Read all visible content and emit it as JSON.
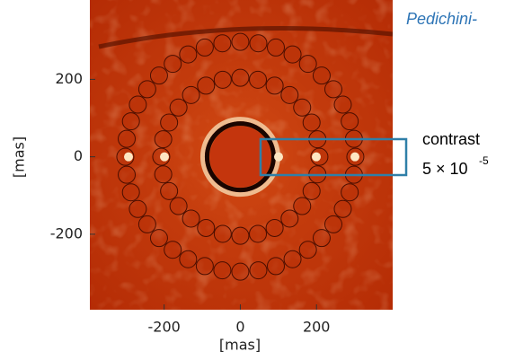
{
  "chart_data": {
    "type": "image",
    "title": "Pedichini-",
    "x_label": "[mas]",
    "y_label": "[mas]",
    "xlim": [
      -395,
      400
    ],
    "ylim": [
      -395,
      405
    ],
    "xticks": [
      -200,
      0,
      200
    ],
    "yticks": [
      -200,
      0,
      200
    ],
    "annotation": {
      "text": "contrast",
      "value_text": "5 × 10",
      "exponent": "-5"
    }
  }
}
